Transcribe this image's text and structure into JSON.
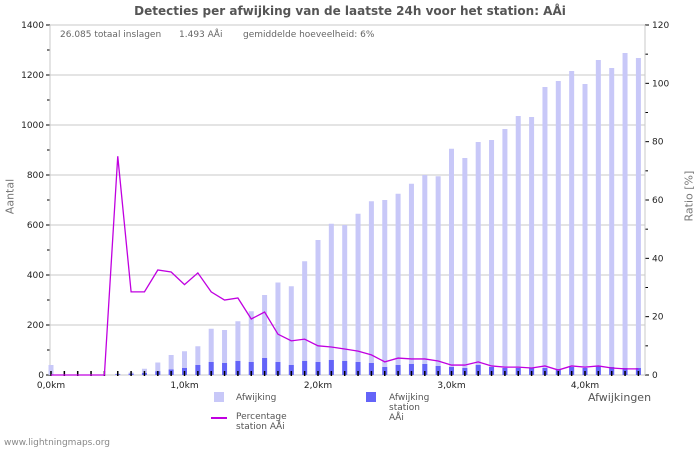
{
  "title": "Detecties per afwijking van de laatste 24h voor het station: AÅi",
  "stats": {
    "total": "26.085 totaal inslagen",
    "station": "1.493 AÅi",
    "average": "gemiddelde hoeveelheid: 6%"
  },
  "axes": {
    "left_label": "Aantal",
    "right_label": "Ratio [%]",
    "x_label": "Afwijkingen"
  },
  "legend": {
    "afwijking": "Afwijking",
    "afwijking_station": "Afwijking station AÅi",
    "percentage_station": "Percentage station AÅi"
  },
  "footer": "www.lightningmaps.org",
  "colors": {
    "afwijking": "#c8c8f8",
    "afwijking_station": "#6464f8",
    "percentage": "#c000e0",
    "grid": "#c8c8c8"
  },
  "chart_data": {
    "type": "bar",
    "title": "Detecties per afwijking van de laatste 24h voor het station: AÅi",
    "xlabel": "Afwijkingen",
    "ylabel": "Aantal",
    "y2label": "Ratio [%]",
    "ylim": [
      0,
      1400
    ],
    "y2lim": [
      0,
      120
    ],
    "yticks": [
      0,
      200,
      400,
      600,
      800,
      1000,
      1200,
      1400
    ],
    "y2ticks": [
      0,
      20,
      40,
      60,
      80,
      100,
      120
    ],
    "xticks": [
      "0,0km",
      "1,0km",
      "2,0km",
      "3,0km",
      "4,0km"
    ],
    "grid": true,
    "legend_position": "bottom",
    "x": [
      0.0,
      0.1,
      0.2,
      0.3,
      0.4,
      0.5,
      0.6,
      0.7,
      0.8,
      0.9,
      1.0,
      1.1,
      1.2,
      1.3,
      1.4,
      1.5,
      1.6,
      1.7,
      1.8,
      1.9,
      2.0,
      2.1,
      2.2,
      2.3,
      2.4,
      2.5,
      2.6,
      2.7,
      2.8,
      2.9,
      3.0,
      3.1,
      3.2,
      3.3,
      3.4,
      3.5,
      3.6,
      3.7,
      3.8,
      3.9,
      4.0,
      4.1,
      4.2,
      4.3,
      4.4
    ],
    "series": [
      {
        "name": "Afwijking",
        "axis": "left",
        "values": [
          40,
          0,
          0,
          0,
          0,
          5,
          10,
          25,
          50,
          80,
          95,
          115,
          185,
          180,
          215,
          255,
          320,
          370,
          355,
          455,
          540,
          605,
          600,
          645,
          695,
          700,
          725,
          765,
          800,
          795,
          905,
          868,
          932,
          940,
          984,
          1036,
          1032,
          1152,
          1176,
          1216,
          1164,
          1260,
          1228,
          1288,
          1268
        ]
      },
      {
        "name": "Afwijking station AÅi",
        "axis": "left",
        "values": [
          0,
          0,
          0,
          0,
          0,
          3,
          5,
          8,
          15,
          22,
          28,
          40,
          52,
          48,
          56,
          52,
          68,
          52,
          40,
          56,
          52,
          60,
          56,
          52,
          48,
          32,
          40,
          44,
          44,
          36,
          32,
          28,
          40,
          32,
          28,
          28,
          28,
          28,
          24,
          32,
          28,
          36,
          32,
          28,
          28
        ]
      },
      {
        "name": "Percentage station AÅi",
        "axis": "right",
        "type": "line",
        "values": [
          0,
          0,
          0,
          0,
          0,
          75,
          28.5,
          28.5,
          36,
          35.3,
          31,
          35,
          28.5,
          25.7,
          26.4,
          19.2,
          21.6,
          14,
          11.7,
          12.3,
          10,
          9.6,
          8.9,
          8.2,
          6.9,
          4.5,
          5.8,
          5.5,
          5.5,
          4.8,
          3.4,
          3.4,
          4.5,
          3.1,
          2.7,
          2.7,
          2.4,
          3.1,
          1.7,
          3.1,
          2.7,
          3.1,
          2.4,
          2.1,
          2.1
        ]
      }
    ]
  }
}
